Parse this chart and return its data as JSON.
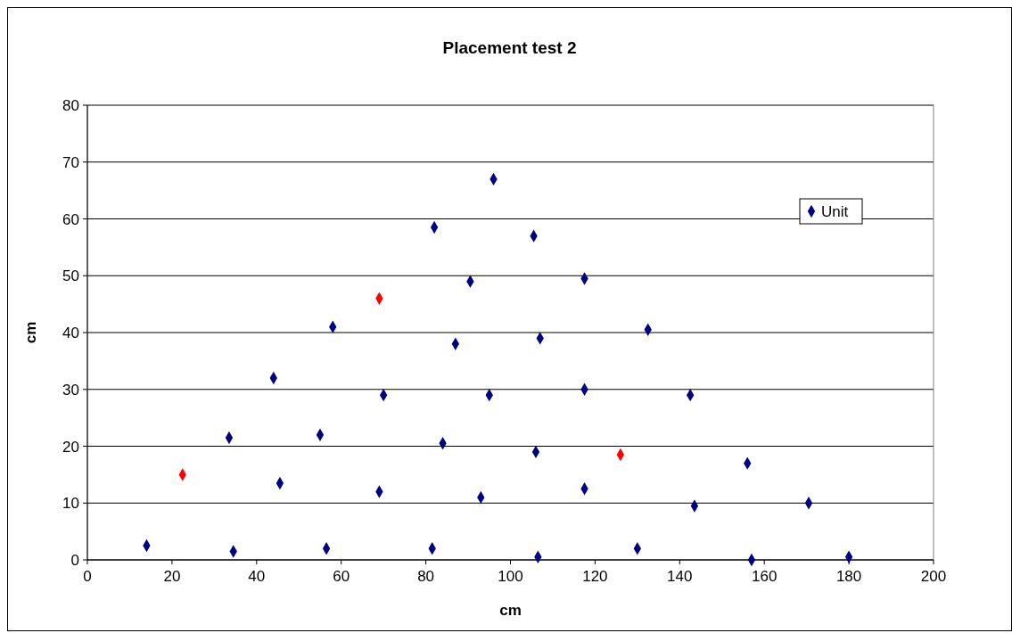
{
  "chart_data": {
    "type": "scatter",
    "title": "Placement test 2",
    "xlabel": "cm",
    "ylabel": "cm",
    "xlim": [
      0,
      200
    ],
    "xticks": [
      0,
      20,
      40,
      60,
      80,
      100,
      120,
      140,
      160,
      180,
      200
    ],
    "ylim": [
      0,
      80
    ],
    "yticks": [
      0,
      10,
      20,
      30,
      40,
      50,
      60,
      70,
      80
    ],
    "grid": "y",
    "legend": "top right",
    "marker": "diamond",
    "series": [
      {
        "name": "Unit",
        "color": "#000080",
        "x": [
          14,
          34.5,
          56.5,
          81.5,
          106.5,
          130,
          157,
          180,
          45.5,
          69,
          93,
          117.5,
          143.5,
          170.5,
          33.5,
          55,
          84,
          106,
          156,
          44,
          70,
          95,
          117.5,
          142.5,
          58,
          87,
          107,
          132.5,
          90.5,
          117.5,
          82,
          105.5,
          96,
          22.5,
          69,
          126
        ],
        "values": [
          2.5,
          1.5,
          2,
          2,
          0.5,
          2,
          0,
          0.5,
          13.5,
          12,
          11,
          12.5,
          9.5,
          10,
          21.5,
          22,
          20.5,
          19,
          17,
          32,
          29,
          29,
          30,
          29,
          41,
          38,
          39,
          40.5,
          49,
          49.5,
          58.5,
          57,
          67,
          15,
          46,
          18.5
        ],
        "colors": [
          "#000080",
          "#000080",
          "#000080",
          "#000080",
          "#000080",
          "#000080",
          "#000080",
          "#000080",
          "#000080",
          "#000080",
          "#000080",
          "#000080",
          "#000080",
          "#000080",
          "#000080",
          "#000080",
          "#000080",
          "#000080",
          "#000080",
          "#000080",
          "#000080",
          "#000080",
          "#000080",
          "#000080",
          "#000080",
          "#000080",
          "#000080",
          "#000080",
          "#000080",
          "#000080",
          "#000080",
          "#000080",
          "#000080",
          "#ff0000",
          "#ff0000",
          "#ff0000"
        ]
      }
    ]
  }
}
